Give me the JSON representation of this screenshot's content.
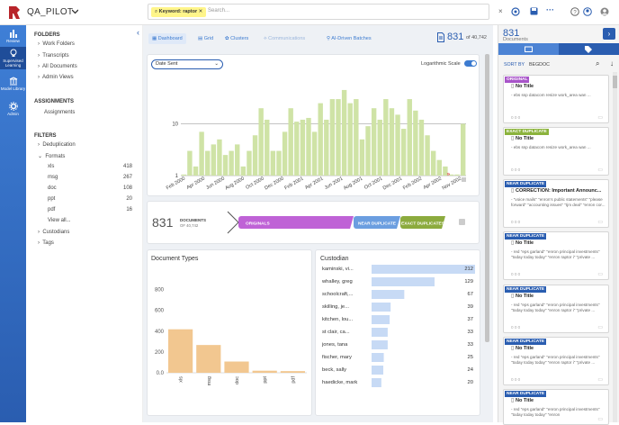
{
  "app": {
    "title": "QA_PILOT"
  },
  "rail": [
    {
      "label": "Review",
      "icon": "bar-chart-icon"
    },
    {
      "label": "Supervised Learning",
      "icon": "bulb-icon"
    },
    {
      "label": "Model Library",
      "icon": "library-icon"
    },
    {
      "label": "Admin",
      "icon": "gear-icon"
    }
  ],
  "search": {
    "chip": "Keyword: raptor",
    "placeholder": "Search..."
  },
  "left": {
    "folders_h": "FOLDERS",
    "folders": [
      "Work Folders",
      "Transcripts",
      "All Documents",
      "Admin Views"
    ],
    "assign_h": "ASSIGNMENTS",
    "assignments": "Assignments",
    "filters_h": "FILTERS",
    "dedup": "Deduplication",
    "formats": "Formats",
    "fmt": [
      {
        "n": "xls",
        "c": "418"
      },
      {
        "n": "msg",
        "c": "267"
      },
      {
        "n": "doc",
        "c": "108"
      },
      {
        "n": "ppt",
        "c": "20"
      },
      {
        "n": "pdf",
        "c": "16"
      }
    ],
    "viewall": "View all...",
    "custodians": "Custodians",
    "tags": "Tags"
  },
  "tabs": {
    "dashboard": "Dashboard",
    "grid": "Grid",
    "clusters": "Clusters",
    "comm": "Communications",
    "ai": "AI-Driven Batches"
  },
  "count": {
    "big": "831",
    "of": "of 40,742"
  },
  "timeline": {
    "select": "Date Sent",
    "log": "Logarithmic Scale",
    "ticks": [
      "1",
      "10"
    ],
    "xlabels": [
      "Feb 2000",
      "Apr 2000",
      "Jun 2000",
      "Aug 2000",
      "Oct 2000",
      "Dec 2000",
      "Feb 2001",
      "Apr 2001",
      "Jun 2001",
      "Aug 2001",
      "Oct 2001",
      "Dec 2001",
      "Feb 2002",
      "Apr 2002",
      "Nov 2002"
    ]
  },
  "dup": {
    "count": "831",
    "docs": "DOCUMENTS",
    "of": "OF 40,742",
    "originals": "ORIGINALS",
    "near": "NEAR DUPLICATE",
    "exact": "EXACT DUPLICATES"
  },
  "doctypes": {
    "title": "Document Types",
    "yticks": [
      "0.0",
      "200",
      "400",
      "600",
      "800"
    ]
  },
  "custodian": {
    "title": "Custodian"
  },
  "chart_data": [
    {
      "type": "bar",
      "title": "Date Sent",
      "ylabel": "",
      "xlabel": "",
      "log_scale": true,
      "ylim": [
        1,
        100
      ],
      "values": [
        1,
        3,
        1.5,
        7,
        3,
        4,
        5,
        2.5,
        3,
        4,
        1.5,
        3,
        6,
        20,
        12,
        3,
        3,
        7,
        20,
        11,
        12,
        13,
        7,
        25,
        12,
        30,
        30,
        45,
        25,
        30,
        5,
        9,
        20,
        12,
        30,
        20,
        15,
        8,
        30,
        18,
        12,
        6,
        3,
        2,
        1.5,
        1,
        1,
        10
      ]
    },
    {
      "type": "bar",
      "title": "Document Types",
      "categories": [
        "xls",
        "msg",
        "doc",
        "ppt",
        "pdf"
      ],
      "values": [
        418,
        267,
        108,
        20,
        16
      ],
      "ylim": [
        0,
        900
      ]
    },
    {
      "type": "bar",
      "title": "Custodian",
      "orientation": "horizontal",
      "categories": [
        "kaminski, vi...",
        "whalley, greg",
        "schoolcraft,...",
        "skilling, je...",
        "kitchen, lou...",
        "st clair, ca...",
        "jones, tana",
        "fischer, mary",
        "beck, sally",
        "haedicke, mark"
      ],
      "values": [
        212,
        129,
        67,
        39,
        37,
        33,
        33,
        25,
        24,
        20
      ]
    }
  ],
  "right": {
    "count": "831",
    "label": "Documents",
    "sort_label": "SORT BY",
    "sort_val": "BEGDOC"
  },
  "docs": [
    {
      "badge": "ORIGINAL",
      "color": "#a854c9",
      "title": "No Title",
      "snip": "- ebs ssp datacom resize work_area wan ...",
      "stats": "0 0 0"
    },
    {
      "badge": "EXACT DUPLICATE",
      "color": "#8bb33c",
      "title": "No Title",
      "snip": "- ebs ssp datacom resize work_area wan ...",
      "stats": "0 0 0"
    },
    {
      "badge": "NEAR DUPLICATE",
      "color": "#2a5db0",
      "title": "CORRECTION: Important Announc...",
      "snip": "- \"voice mails\" \"enron's public statements\" \"please forward\" \"accounting issues\" \"tjm deal\" \"enron cor...",
      "stats": "0 0 0"
    },
    {
      "badge": "NEAR DUPLICATE",
      "color": "#2a5db0",
      "title": "No Title",
      "snip": "- red \"eps garland\" \"enron principal investments\" \"today today today\" \"enron raptor i\" \"private ...",
      "stats": "0 0 0"
    },
    {
      "badge": "NEAR DUPLICATE",
      "color": "#2a5db0",
      "title": "No Title",
      "snip": "- red \"eps garland\" \"enron principal investments\" \"today today today\" \"enron raptor i\" \"private ...",
      "stats": "0 0 0"
    },
    {
      "badge": "NEAR DUPLICATE",
      "color": "#2a5db0",
      "title": "No Title",
      "snip": "- red \"eps garland\" \"enron principal investments\" \"today today today\" \"enron raptor i\" \"private ...",
      "stats": "0 0 0"
    },
    {
      "badge": "NEAR DUPLICATE",
      "color": "#2a5db0",
      "title": "No Title",
      "snip": "- red \"eps garland\" \"enron principal investments\" \"today today today\" \"enron",
      "stats": ""
    }
  ]
}
